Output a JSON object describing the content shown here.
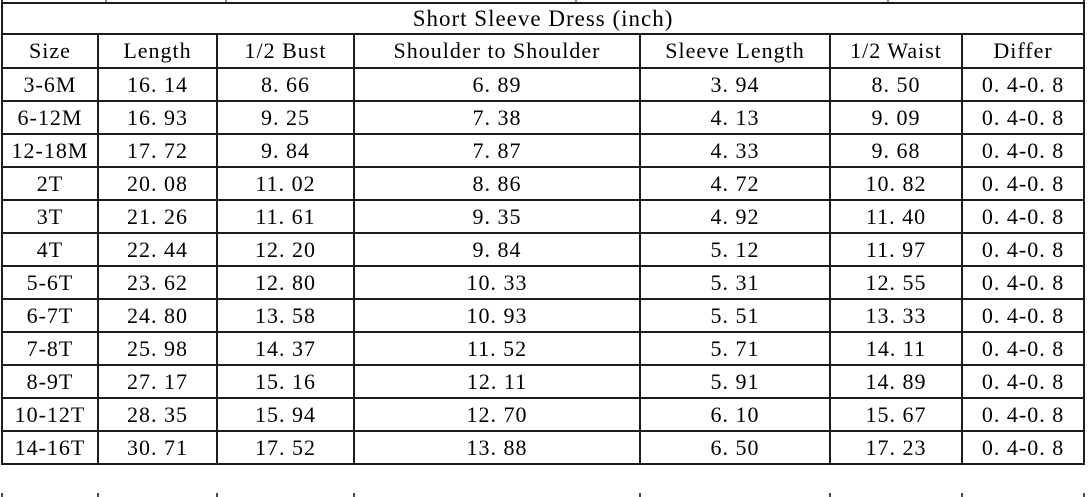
{
  "chart_data": {
    "type": "table",
    "title": "Short Sleeve Dress (inch)",
    "columns": [
      "Size",
      "Length",
      "1/2 Bust",
      "Shoulder to Shoulder",
      "Sleeve Length",
      "1/2 Waist",
      "Differ"
    ],
    "rows": [
      [
        "3-6M",
        "16. 14",
        "8. 66",
        "6. 89",
        "3. 94",
        "8. 50",
        "0. 4-0. 8"
      ],
      [
        "6-12M",
        "16. 93",
        "9. 25",
        "7. 38",
        "4. 13",
        "9. 09",
        "0. 4-0. 8"
      ],
      [
        "12-18M",
        "17. 72",
        "9. 84",
        "7. 87",
        "4. 33",
        "9. 68",
        "0. 4-0. 8"
      ],
      [
        "2T",
        "20. 08",
        "11. 02",
        "8. 86",
        "4. 72",
        "10. 82",
        "0. 4-0. 8"
      ],
      [
        "3T",
        "21. 26",
        "11. 61",
        "9. 35",
        "4. 92",
        "11. 40",
        "0. 4-0. 8"
      ],
      [
        "4T",
        "22. 44",
        "12. 20",
        "9. 84",
        "5. 12",
        "11. 97",
        "0. 4-0. 8"
      ],
      [
        "5-6T",
        "23. 62",
        "12. 80",
        "10. 33",
        "5. 31",
        "12. 55",
        "0. 4-0. 8"
      ],
      [
        "6-7T",
        "24. 80",
        "13. 58",
        "10. 93",
        "5. 51",
        "13. 33",
        "0. 4-0. 8"
      ],
      [
        "7-8T",
        "25. 98",
        "14. 37",
        "11. 52",
        "5. 71",
        "14. 11",
        "0. 4-0. 8"
      ],
      [
        "8-9T",
        "27. 17",
        "15. 16",
        "12. 11",
        "5. 91",
        "14. 89",
        "0. 4-0. 8"
      ],
      [
        "10-12T",
        "28. 35",
        "15. 94",
        "12. 70",
        "6. 10",
        "15. 67",
        "0. 4-0. 8"
      ],
      [
        "14-16T",
        "30. 71",
        "17. 52",
        "13. 88",
        "6. 50",
        "17. 23",
        "0. 4-0. 8"
      ]
    ],
    "unit": "inch",
    "layout": {
      "grid": true,
      "text_color": "#000000",
      "border_color": "#1c1c1c",
      "background": "#ffffff"
    }
  }
}
